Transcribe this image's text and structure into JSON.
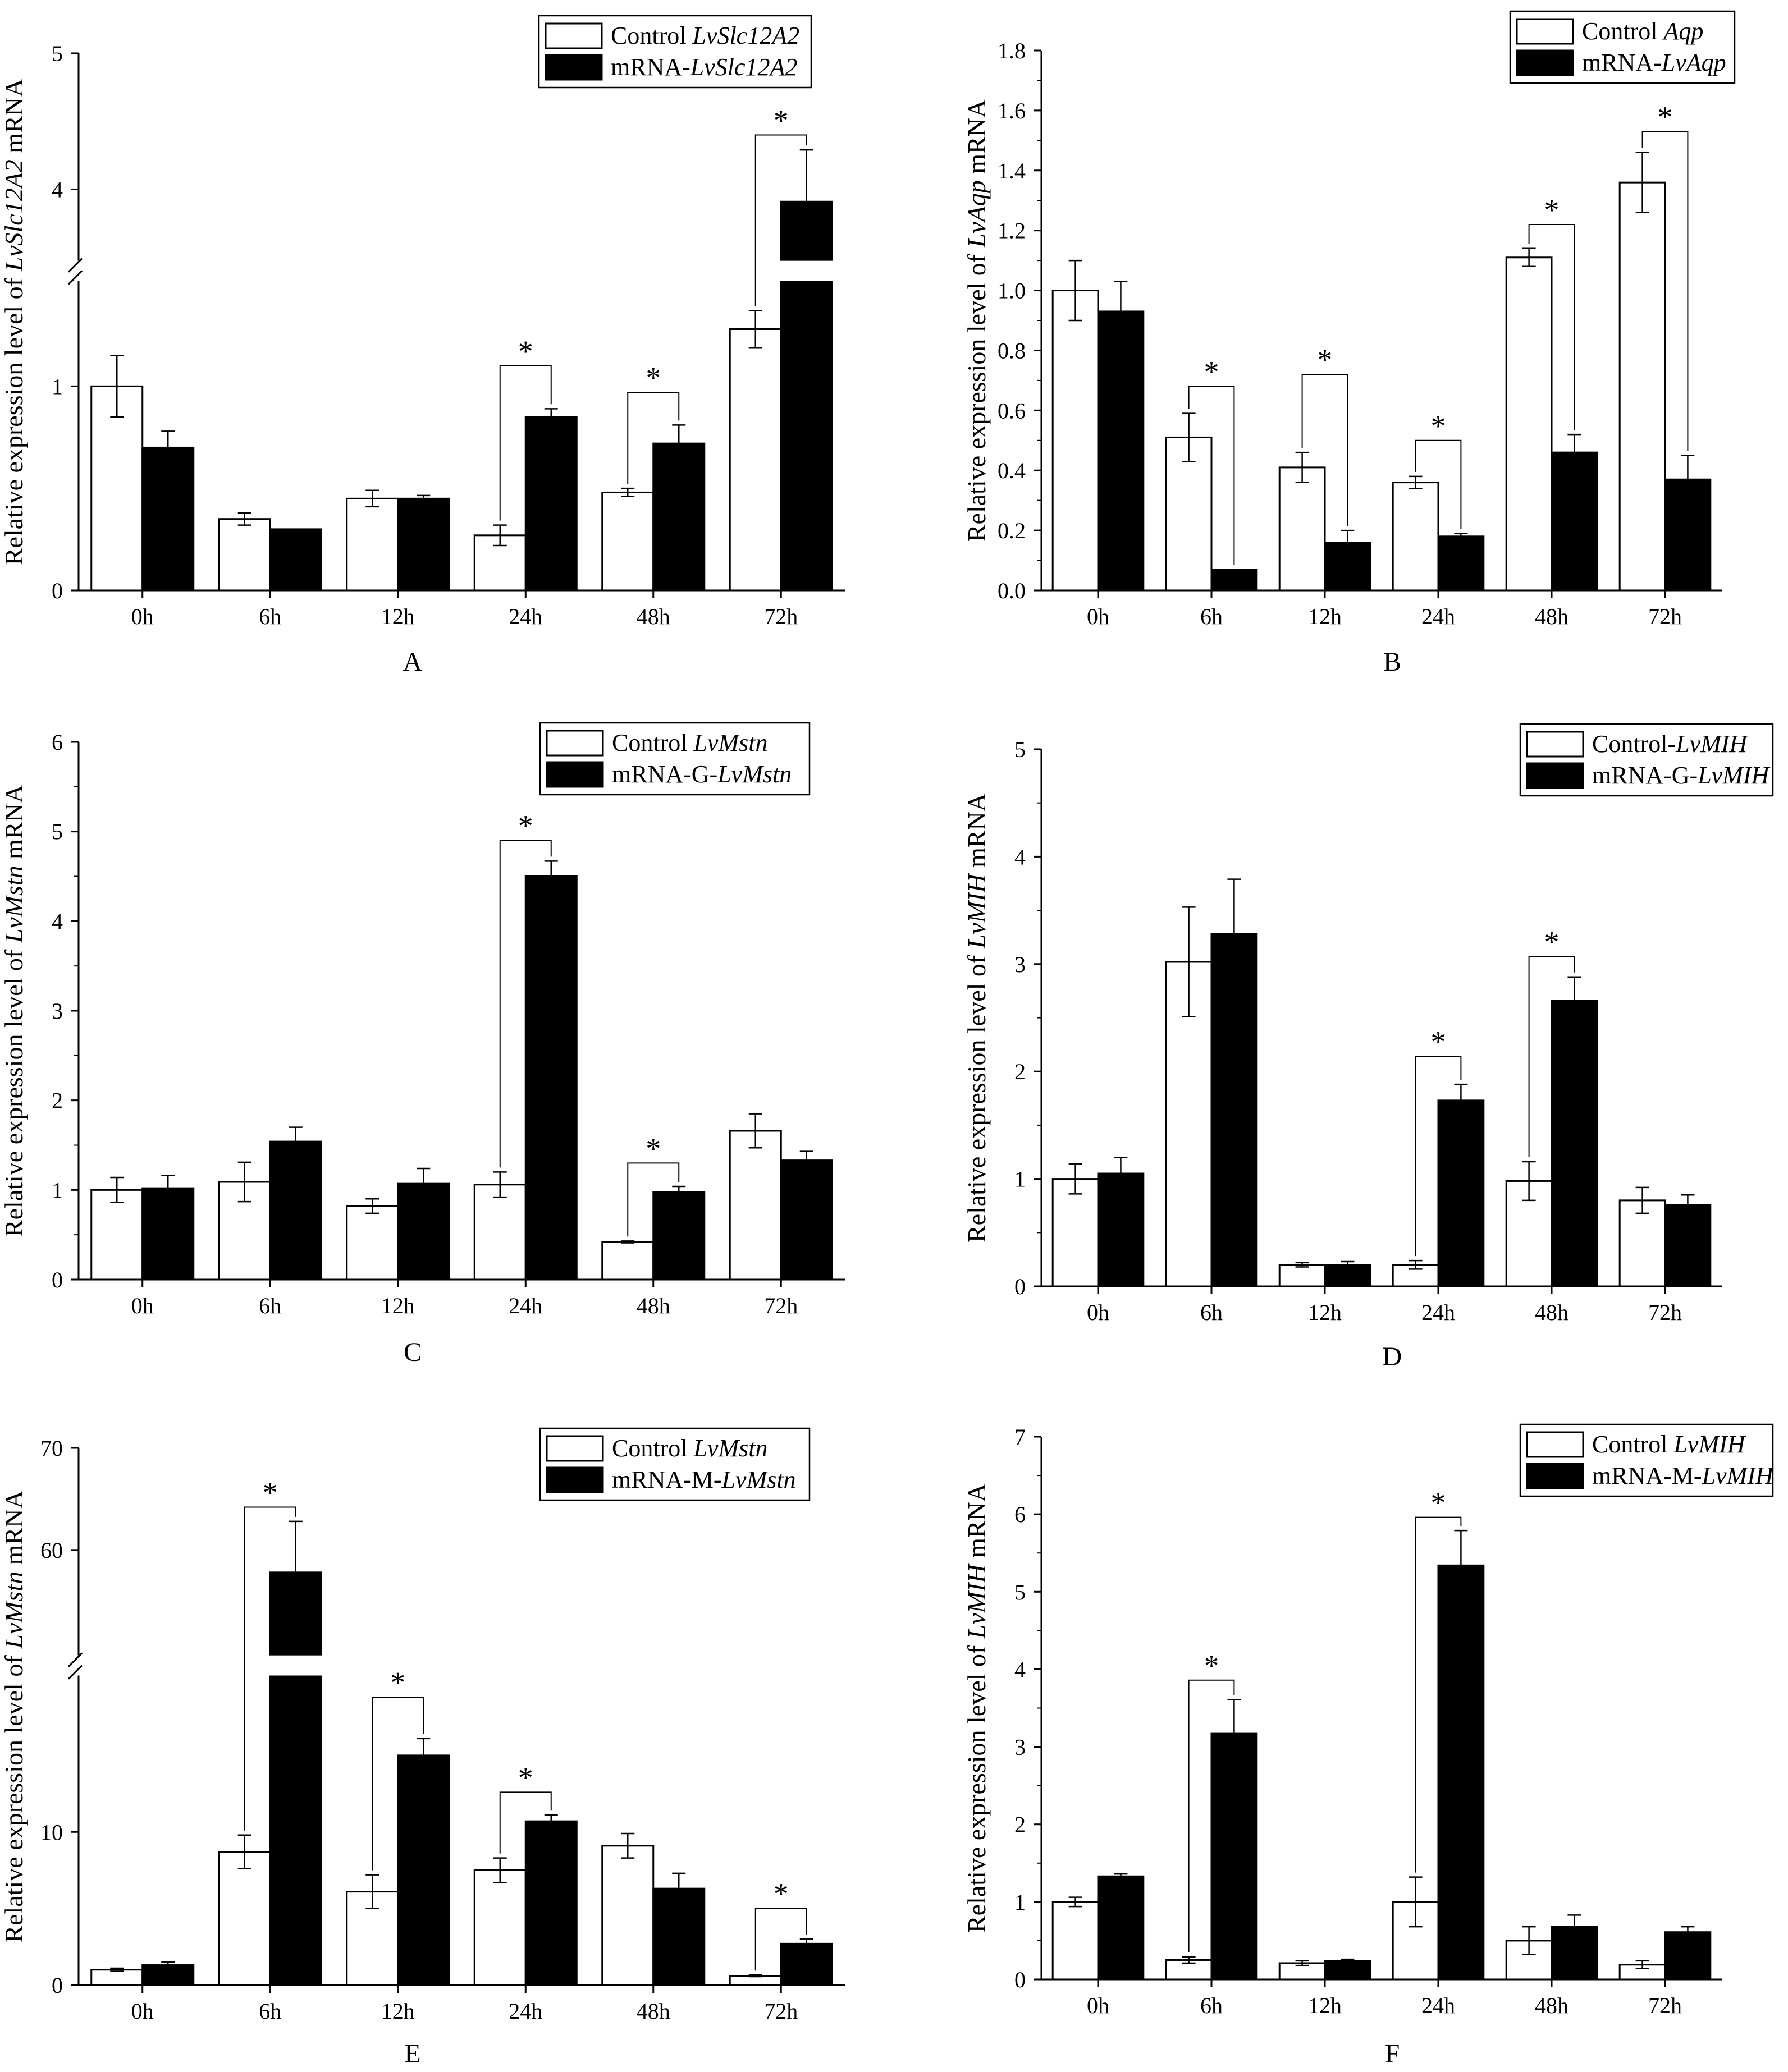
{
  "colors": {
    "control": "#ffffff",
    "treatment": "#000000",
    "axis": "#000000"
  },
  "chart_data": [
    {
      "panel": "A",
      "type": "bar",
      "categories": [
        "0h",
        "6h",
        "12h",
        "24h",
        "48h",
        "72h"
      ],
      "ylabel_parts": [
        "Relative expression level of ",
        "LvSlc12A2",
        " mRNA"
      ],
      "yticks": [
        0,
        1,
        4,
        5
      ],
      "break": {
        "lower": [
          0,
          1.5
        ],
        "upper": [
          3.5,
          5
        ]
      },
      "legend": [
        {
          "prefix": "Control ",
          "gene": "LvSlc12A2",
          "color": "#ffffff"
        },
        {
          "prefix": "mRNA-",
          "gene": "LvSlc12A2",
          "color": "#000000"
        }
      ],
      "series": [
        {
          "name": "Control LvSlc12A2",
          "values": [
            1.0,
            0.35,
            0.45,
            0.27,
            0.48,
            1.28
          ],
          "errors": [
            0.15,
            0.03,
            0.04,
            0.05,
            0.02,
            0.09
          ]
        },
        {
          "name": "mRNA-LvSlc12A2",
          "values": [
            0.7,
            0.3,
            0.45,
            0.85,
            0.72,
            3.91
          ],
          "errors": [
            0.08,
            0.0,
            0.015,
            0.04,
            0.09,
            0.38
          ]
        }
      ],
      "significance": [
        {
          "category": "24h",
          "y": 1.1,
          "label": "*"
        },
        {
          "category": "48h",
          "y": 0.97,
          "label": "*"
        },
        {
          "category": "72h",
          "y": 4.4,
          "label": "*"
        }
      ]
    },
    {
      "panel": "B",
      "type": "bar",
      "categories": [
        "0h",
        "6h",
        "12h",
        "24h",
        "48h",
        "72h"
      ],
      "ylabel_parts": [
        "Relative expression level of ",
        "LvAqp",
        " mRNA"
      ],
      "yticks": [
        0.0,
        0.2,
        0.4,
        0.6,
        0.8,
        1.0,
        1.2,
        1.4,
        1.6,
        1.8
      ],
      "tick_labels": [
        "0.0",
        "0.2",
        "0.4",
        "0.6",
        "0.8",
        "1.0",
        "1.2",
        "1.4",
        "1.6",
        "1.8"
      ],
      "ylim": [
        0,
        1.8
      ],
      "legend": [
        {
          "prefix": "Control ",
          "gene": "Aqp",
          "color": "#ffffff"
        },
        {
          "prefix": "mRNA-",
          "gene": "LvAqp",
          "color": "#000000"
        }
      ],
      "series": [
        {
          "name": "Control Aqp",
          "values": [
            1.0,
            0.51,
            0.41,
            0.36,
            1.11,
            1.36
          ],
          "errors": [
            0.1,
            0.08,
            0.05,
            0.02,
            0.03,
            0.1
          ]
        },
        {
          "name": "mRNA-LvAqp",
          "values": [
            0.93,
            0.07,
            0.16,
            0.18,
            0.46,
            0.37
          ],
          "errors": [
            0.1,
            0.0,
            0.04,
            0.01,
            0.06,
            0.08
          ]
        }
      ],
      "significance": [
        {
          "category": "6h",
          "y": 0.68,
          "label": "*"
        },
        {
          "category": "12h",
          "y": 0.72,
          "label": "*"
        },
        {
          "category": "24h",
          "y": 0.5,
          "label": "*"
        },
        {
          "category": "48h",
          "y": 1.22,
          "label": "*"
        },
        {
          "category": "72h",
          "y": 1.53,
          "label": "*"
        }
      ]
    },
    {
      "panel": "C",
      "type": "bar",
      "categories": [
        "0h",
        "6h",
        "12h",
        "24h",
        "48h",
        "72h"
      ],
      "ylabel_parts": [
        "Relative expression level of ",
        "LvMstn",
        " mRNA"
      ],
      "yticks": [
        0,
        1,
        2,
        3,
        4,
        5,
        6
      ],
      "ylim": [
        0,
        6
      ],
      "legend": [
        {
          "prefix": "Control ",
          "gene": "LvMstn",
          "color": "#ffffff"
        },
        {
          "prefix": "mRNA-G-",
          "gene": "LvMstn",
          "color": "#000000"
        }
      ],
      "series": [
        {
          "name": "Control LvMstn",
          "values": [
            1.0,
            1.09,
            0.82,
            1.06,
            0.42,
            1.66
          ],
          "errors": [
            0.14,
            0.22,
            0.08,
            0.14,
            0.01,
            0.19
          ]
        },
        {
          "name": "mRNA-G-LvMstn",
          "values": [
            1.02,
            1.54,
            1.07,
            4.5,
            0.98,
            1.33
          ],
          "errors": [
            0.14,
            0.16,
            0.17,
            0.17,
            0.06,
            0.1
          ]
        }
      ],
      "significance": [
        {
          "category": "24h",
          "y": 4.9,
          "label": "*"
        },
        {
          "category": "48h",
          "y": 1.3,
          "label": "*"
        }
      ]
    },
    {
      "panel": "D",
      "type": "bar",
      "categories": [
        "0h",
        "6h",
        "12h",
        "24h",
        "48h",
        "72h"
      ],
      "ylabel_parts": [
        "Relative expression level of ",
        "LvMIH",
        " mRNA"
      ],
      "yticks": [
        0,
        1,
        2,
        3,
        4,
        5
      ],
      "ylim": [
        0,
        5
      ],
      "legend": [
        {
          "prefix": "Control-",
          "gene": "LvMIH",
          "color": "#ffffff"
        },
        {
          "prefix": "mRNA-G-",
          "gene": "LvMIH",
          "color": "#000000"
        }
      ],
      "series": [
        {
          "name": "Control-LvMIH",
          "values": [
            1.0,
            3.02,
            0.2,
            0.2,
            0.98,
            0.8
          ],
          "errors": [
            0.14,
            0.51,
            0.02,
            0.04,
            0.18,
            0.12
          ]
        },
        {
          "name": "mRNA-G-LvMIH",
          "values": [
            1.05,
            3.28,
            0.2,
            1.73,
            2.66,
            0.76
          ],
          "errors": [
            0.15,
            0.51,
            0.03,
            0.15,
            0.22,
            0.09
          ]
        }
      ],
      "significance": [
        {
          "category": "24h",
          "y": 2.14,
          "label": "*"
        },
        {
          "category": "48h",
          "y": 3.07,
          "label": "*"
        }
      ]
    },
    {
      "panel": "E",
      "type": "bar",
      "categories": [
        "0h",
        "6h",
        "12h",
        "24h",
        "48h",
        "72h"
      ],
      "ylabel_parts": [
        "Relative expression level of ",
        "LvMstn",
        " mRNA"
      ],
      "yticks": [
        0,
        10,
        60,
        70
      ],
      "break": {
        "lower": [
          0,
          20
        ],
        "upper": [
          50,
          70
        ]
      },
      "legend": [
        {
          "prefix": "Control ",
          "gene": "LvMstn",
          "color": "#ffffff"
        },
        {
          "prefix": "mRNA-M-",
          "gene": "LvMstn",
          "color": "#000000"
        }
      ],
      "series": [
        {
          "name": "Control LvMstn",
          "values": [
            1.0,
            8.7,
            6.1,
            7.5,
            9.1,
            0.6
          ],
          "errors": [
            0.1,
            1.1,
            1.1,
            0.8,
            0.8,
            0.05
          ]
        },
        {
          "name": "mRNA-M-LvMstn",
          "values": [
            1.3,
            57.8,
            15.0,
            10.7,
            6.3,
            2.7
          ],
          "errors": [
            0.2,
            5.0,
            1.1,
            0.4,
            1.0,
            0.3
          ]
        }
      ],
      "significance": [
        {
          "category": "6h",
          "y": 64.2,
          "label": "*"
        },
        {
          "category": "12h",
          "y": 18.8,
          "label": "*"
        },
        {
          "category": "24h",
          "y": 12.6,
          "label": "*"
        },
        {
          "category": "72h",
          "y": 5.0,
          "label": "*"
        }
      ]
    },
    {
      "panel": "F",
      "type": "bar",
      "categories": [
        "0h",
        "6h",
        "12h",
        "24h",
        "48h",
        "72h"
      ],
      "ylabel_parts": [
        "Relative expression level of ",
        "LvMIH",
        " mRNA"
      ],
      "yticks": [
        0,
        1,
        2,
        3,
        4,
        5,
        6,
        7
      ],
      "ylim": [
        0,
        7
      ],
      "legend": [
        {
          "prefix": "Control ",
          "gene": "LvMIH",
          "color": "#ffffff"
        },
        {
          "prefix": "mRNA-M-",
          "gene": "LvMIH",
          "color": "#000000"
        }
      ],
      "series": [
        {
          "name": "Control LvMIH",
          "values": [
            1.0,
            0.25,
            0.21,
            1.0,
            0.5,
            0.19
          ],
          "errors": [
            0.06,
            0.04,
            0.03,
            0.32,
            0.18,
            0.05
          ]
        },
        {
          "name": "mRNA-M-LvMIH",
          "values": [
            1.33,
            3.17,
            0.24,
            5.34,
            0.68,
            0.61
          ],
          "errors": [
            0.03,
            0.44,
            0.02,
            0.45,
            0.15,
            0.07
          ]
        }
      ],
      "significance": [
        {
          "category": "6h",
          "y": 3.86,
          "label": "*"
        },
        {
          "category": "24h",
          "y": 5.96,
          "label": "*"
        }
      ]
    }
  ]
}
